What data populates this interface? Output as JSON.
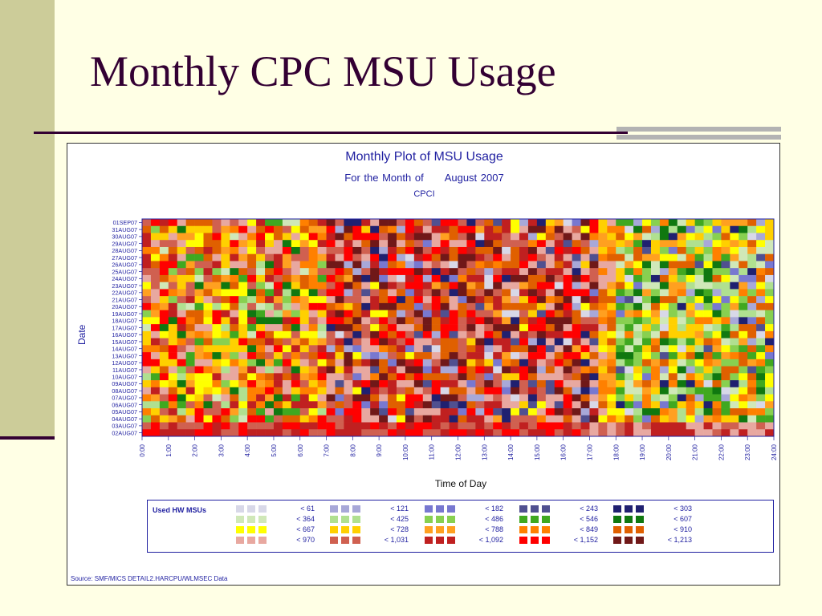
{
  "slide_title": "Monthly CPC MSU Usage",
  "chart_data": {
    "type": "heatmap",
    "title": "Monthly Plot of MSU Usage",
    "subtitle_label": "For the Month of",
    "subtitle_period": "August 2007",
    "subtitle2": "CPCI",
    "xlabel": "Time of Day",
    "ylabel": "Date",
    "x_ticks": [
      "0:00",
      "1:00",
      "2:00",
      "3:00",
      "4:00",
      "5:00",
      "6:00",
      "7:00",
      "8:00",
      "9:00",
      "10:00",
      "11:00",
      "12:00",
      "13:00",
      "14:00",
      "15:00",
      "16:00",
      "17:00",
      "18:00",
      "19:00",
      "20:00",
      "21:00",
      "22:00",
      "23:00",
      "24:00"
    ],
    "x_range_hours": [
      0,
      24
    ],
    "y_categories": [
      "01SEP07",
      "31AUG07",
      "30AUG07",
      "29AUG07",
      "28AUG07",
      "27AUG07",
      "26AUG07",
      "25AUG07",
      "24AUG07",
      "23AUG07",
      "22AUG07",
      "21AUG07",
      "20AUG07",
      "19AUG07",
      "18AUG07",
      "17AUG07",
      "16AUG07",
      "15AUG07",
      "14AUG07",
      "13AUG07",
      "12AUG07",
      "11AUG07",
      "10AUG07",
      "09AUG07",
      "08AUG07",
      "07AUG07",
      "06AUG07",
      "05AUG07",
      "04AUG07",
      "03AUG07",
      "02AUG07"
    ],
    "cell_interval_minutes": 20,
    "legend_title": "Used HW MSUs",
    "legend": [
      {
        "label": "<  61",
        "color": "#d8d8e8"
      },
      {
        "label": "<  121",
        "color": "#a8a8d8"
      },
      {
        "label": "<  182",
        "color": "#7878d0"
      },
      {
        "label": "<  243",
        "color": "#505090"
      },
      {
        "label": "<  303",
        "color": "#202070"
      },
      {
        "label": "<  364",
        "color": "#d0e8b8"
      },
      {
        "label": "<  425",
        "color": "#b0e090"
      },
      {
        "label": "<  486",
        "color": "#88d050"
      },
      {
        "label": "<  546",
        "color": "#40a820"
      },
      {
        "label": "<  607",
        "color": "#107810"
      },
      {
        "label": "<  667",
        "color": "#ffff00"
      },
      {
        "label": "<  728",
        "color": "#ffd000"
      },
      {
        "label": "<  788",
        "color": "#ffa020"
      },
      {
        "label": "<  849",
        "color": "#ff8000"
      },
      {
        "label": "<  910",
        "color": "#e06000"
      },
      {
        "label": "<  970",
        "color": "#e8a8a0"
      },
      {
        "label": "<  1,031",
        "color": "#d06050"
      },
      {
        "label": "<  1,092",
        "color": "#c02020"
      },
      {
        "label": "<  1,152",
        "color": "#ff0000"
      },
      {
        "label": "<  1,213",
        "color": "#701818"
      }
    ],
    "source": "Source: SMF/MICS DETAIL2.HARCPU/WLMSEC Data"
  }
}
